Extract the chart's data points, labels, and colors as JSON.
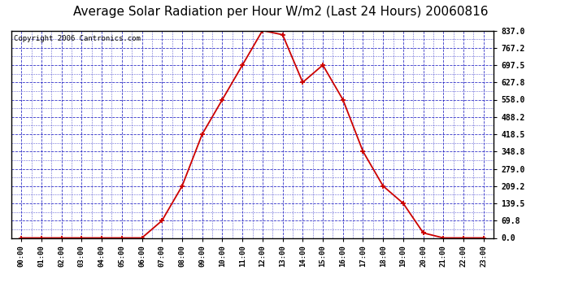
{
  "title": "Average Solar Radiation per Hour W/m2 (Last 24 Hours) 20060816",
  "copyright": "Copyright 2006 Cantronics.com",
  "hours": [
    "00:00",
    "01:00",
    "02:00",
    "03:00",
    "04:00",
    "05:00",
    "06:00",
    "07:00",
    "08:00",
    "09:00",
    "10:00",
    "11:00",
    "12:00",
    "13:00",
    "14:00",
    "15:00",
    "16:00",
    "17:00",
    "18:00",
    "19:00",
    "20:00",
    "21:00",
    "22:00",
    "23:00"
  ],
  "values": [
    0.0,
    0.0,
    0.0,
    0.0,
    0.0,
    0.0,
    0.0,
    69.8,
    209.2,
    418.5,
    558.0,
    697.5,
    837.0,
    820.0,
    627.8,
    697.5,
    558.0,
    348.8,
    209.2,
    139.5,
    20.0,
    0.0,
    0.0,
    0.0
  ],
  "yticks": [
    0.0,
    69.8,
    139.5,
    209.2,
    279.0,
    348.8,
    418.5,
    488.2,
    558.0,
    627.8,
    697.5,
    767.2,
    837.0
  ],
  "line_color": "#cc0000",
  "marker_color": "#cc0000",
  "bg_color": "#ffffff",
  "plot_bg_color": "#ffffff",
  "grid_color": "#0000bb",
  "title_fontsize": 11,
  "copyright_fontsize": 6.5
}
